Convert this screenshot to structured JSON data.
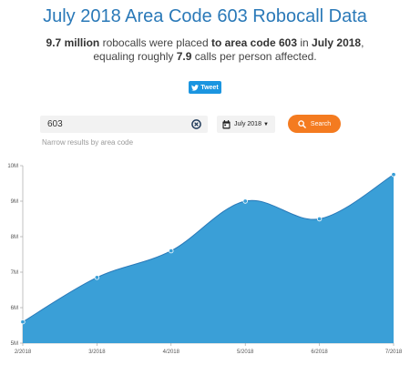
{
  "header": {
    "title": "July 2018 Area Code 603 Robocall Data",
    "summary_count": "9.7 million",
    "summary_text1": " robocalls were placed ",
    "summary_area": "to area code 603",
    "summary_in": " in ",
    "summary_month": "July 2018",
    "summary_text2": ",",
    "summary_line2_a": "equaling roughly ",
    "summary_per_person": "7.9",
    "summary_line2_b": " calls per person affected."
  },
  "tweet": {
    "label": "Tweet"
  },
  "search": {
    "value": "603",
    "hint": "Narrow results by area code",
    "month": "July 2018",
    "button_label": "Search"
  },
  "colors": {
    "fill": "#3a9fd7",
    "line": "#2a79b8",
    "accent": "#f47b20"
  },
  "chart_data": {
    "type": "area",
    "x": [
      "2/2018",
      "3/2018",
      "4/2018",
      "5/2018",
      "6/2018",
      "7/2018"
    ],
    "values": [
      5.6,
      6.85,
      7.6,
      9.0,
      8.5,
      9.75
    ],
    "y_unit": "M",
    "y_ticks": [
      "5M",
      "6M",
      "7M",
      "8M",
      "9M",
      "10M"
    ],
    "ylim": [
      5,
      10
    ],
    "grid": false
  }
}
